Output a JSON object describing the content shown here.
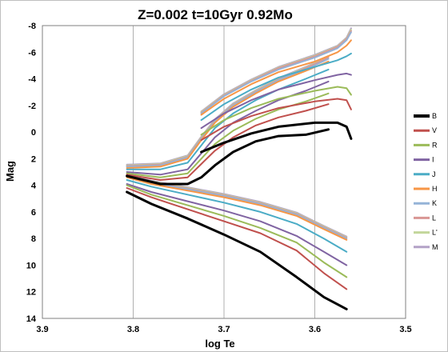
{
  "chart_data": {
    "type": "line",
    "title": "Z=0.002   t=10Gyr   0.92Mo",
    "xlabel": "log Te",
    "ylabel": "Mag",
    "xlim": [
      3.9,
      3.5
    ],
    "ylim": [
      14,
      -8
    ],
    "x_ticks": [
      "3.9",
      "3.8",
      "3.7",
      "3.6",
      "3.5"
    ],
    "y_ticks": [
      "-8",
      "-6",
      "-4",
      "-2",
      "0",
      "2",
      "4",
      "6",
      "8",
      "10",
      "12",
      "14"
    ],
    "x_tick_values": [
      3.9,
      3.8,
      3.7,
      3.6,
      3.5
    ],
    "y_tick_values": [
      -8,
      -6,
      -4,
      -2,
      0,
      2,
      4,
      6,
      8,
      10,
      12,
      14
    ],
    "grid": "vertical",
    "legend_position": "right",
    "series": [
      {
        "name": "B",
        "color": "#000000",
        "width": 3,
        "ms": [
          [
            3.807,
            4.5
          ],
          [
            3.78,
            5.4
          ],
          [
            3.74,
            6.5
          ],
          [
            3.7,
            7.7
          ],
          [
            3.66,
            9.0
          ],
          [
            3.62,
            10.9
          ],
          [
            3.59,
            12.4
          ],
          [
            3.565,
            13.3
          ]
        ],
        "rgb": [
          [
            3.807,
            3.3
          ],
          [
            3.77,
            3.9
          ],
          [
            3.74,
            3.9
          ],
          [
            3.725,
            3.4
          ],
          [
            3.71,
            2.5
          ],
          [
            3.69,
            1.5
          ],
          [
            3.665,
            0.7
          ],
          [
            3.64,
            0.3
          ],
          [
            3.61,
            0.2
          ],
          [
            3.585,
            -0.2
          ]
        ],
        "agb": [
          [
            3.725,
            1.5
          ],
          [
            3.7,
            0.8
          ],
          [
            3.67,
            0.1
          ],
          [
            3.64,
            -0.4
          ],
          [
            3.6,
            -0.7
          ],
          [
            3.575,
            -0.7
          ],
          [
            3.565,
            -0.4
          ],
          [
            3.56,
            0.5
          ]
        ]
      },
      {
        "name": "V",
        "color": "#c0504d",
        "width": 2,
        "ms": [
          [
            3.807,
            4.2
          ],
          [
            3.78,
            4.9
          ],
          [
            3.74,
            5.8
          ],
          [
            3.7,
            6.7
          ],
          [
            3.66,
            7.6
          ],
          [
            3.62,
            8.9
          ],
          [
            3.59,
            10.6
          ],
          [
            3.565,
            11.8
          ]
        ],
        "rgb": [
          [
            3.807,
            3.2
          ],
          [
            3.77,
            3.6
          ],
          [
            3.74,
            3.4
          ],
          [
            3.725,
            2.4
          ],
          [
            3.71,
            1.4
          ],
          [
            3.69,
            0.4
          ],
          [
            3.665,
            -0.5
          ],
          [
            3.64,
            -1.1
          ],
          [
            3.61,
            -1.6
          ],
          [
            3.585,
            -2.1
          ]
        ],
        "agb": [
          [
            3.725,
            0.6
          ],
          [
            3.7,
            -0.4
          ],
          [
            3.67,
            -1.2
          ],
          [
            3.64,
            -1.8
          ],
          [
            3.6,
            -2.3
          ],
          [
            3.575,
            -2.5
          ],
          [
            3.565,
            -2.4
          ],
          [
            3.56,
            -1.7
          ]
        ]
      },
      {
        "name": "R",
        "color": "#9bbb59",
        "width": 2,
        "ms": [
          [
            3.807,
            4.0
          ],
          [
            3.78,
            4.7
          ],
          [
            3.74,
            5.5
          ],
          [
            3.7,
            6.3
          ],
          [
            3.66,
            7.2
          ],
          [
            3.62,
            8.3
          ],
          [
            3.59,
            9.8
          ],
          [
            3.565,
            10.9
          ]
        ],
        "rgb": [
          [
            3.807,
            3.1
          ],
          [
            3.77,
            3.4
          ],
          [
            3.74,
            3.1
          ],
          [
            3.725,
            2.0
          ],
          [
            3.71,
            0.9
          ],
          [
            3.69,
            -0.1
          ],
          [
            3.665,
            -1.0
          ],
          [
            3.64,
            -1.7
          ],
          [
            3.61,
            -2.3
          ],
          [
            3.585,
            -2.9
          ]
        ],
        "agb": [
          [
            3.725,
            0.2
          ],
          [
            3.7,
            -0.9
          ],
          [
            3.67,
            -1.8
          ],
          [
            3.64,
            -2.5
          ],
          [
            3.6,
            -3.1
          ],
          [
            3.575,
            -3.4
          ],
          [
            3.565,
            -3.3
          ],
          [
            3.56,
            -2.8
          ]
        ]
      },
      {
        "name": "I",
        "color": "#8064a2",
        "width": 2,
        "ms": [
          [
            3.807,
            3.9
          ],
          [
            3.78,
            4.5
          ],
          [
            3.74,
            5.2
          ],
          [
            3.7,
            5.9
          ],
          [
            3.66,
            6.7
          ],
          [
            3.62,
            7.8
          ],
          [
            3.59,
            9.0
          ],
          [
            3.565,
            10.0
          ]
        ],
        "rgb": [
          [
            3.807,
            3.0
          ],
          [
            3.77,
            3.2
          ],
          [
            3.74,
            2.8
          ],
          [
            3.725,
            1.6
          ],
          [
            3.71,
            0.4
          ],
          [
            3.69,
            -0.7
          ],
          [
            3.665,
            -1.6
          ],
          [
            3.64,
            -2.4
          ],
          [
            3.61,
            -3.1
          ],
          [
            3.585,
            -3.8
          ]
        ],
        "agb": [
          [
            3.725,
            -0.3
          ],
          [
            3.7,
            -1.4
          ],
          [
            3.67,
            -2.4
          ],
          [
            3.64,
            -3.2
          ],
          [
            3.6,
            -3.9
          ],
          [
            3.575,
            -4.3
          ],
          [
            3.565,
            -4.4
          ],
          [
            3.56,
            -4.3
          ]
        ]
      },
      {
        "name": "J",
        "color": "#4bacc6",
        "width": 2,
        "ms": [
          [
            3.807,
            3.6
          ],
          [
            3.78,
            4.1
          ],
          [
            3.74,
            4.7
          ],
          [
            3.7,
            5.3
          ],
          [
            3.66,
            6.0
          ],
          [
            3.62,
            6.9
          ],
          [
            3.59,
            8.0
          ],
          [
            3.565,
            9.0
          ]
        ],
        "rgb": [
          [
            3.807,
            2.8
          ],
          [
            3.77,
            2.8
          ],
          [
            3.74,
            2.3
          ],
          [
            3.725,
            1.0
          ],
          [
            3.71,
            -0.3
          ],
          [
            3.69,
            -1.4
          ],
          [
            3.665,
            -2.4
          ],
          [
            3.64,
            -3.2
          ],
          [
            3.61,
            -4.0
          ],
          [
            3.585,
            -4.7
          ]
        ],
        "agb": [
          [
            3.725,
            -0.9
          ],
          [
            3.7,
            -2.1
          ],
          [
            3.67,
            -3.2
          ],
          [
            3.64,
            -4.1
          ],
          [
            3.6,
            -4.9
          ],
          [
            3.575,
            -5.4
          ],
          [
            3.565,
            -5.7
          ],
          [
            3.56,
            -5.9
          ]
        ]
      },
      {
        "name": "H",
        "color": "#f79646",
        "width": 2,
        "ms": [
          [
            3.807,
            3.4
          ],
          [
            3.78,
            3.9
          ],
          [
            3.74,
            4.4
          ],
          [
            3.7,
            4.9
          ],
          [
            3.66,
            5.5
          ],
          [
            3.62,
            6.3
          ],
          [
            3.59,
            7.3
          ],
          [
            3.565,
            8.1
          ]
        ],
        "rgb": [
          [
            3.807,
            2.7
          ],
          [
            3.77,
            2.6
          ],
          [
            3.74,
            2.0
          ],
          [
            3.725,
            0.6
          ],
          [
            3.71,
            -0.7
          ],
          [
            3.69,
            -1.9
          ],
          [
            3.665,
            -2.9
          ],
          [
            3.64,
            -3.8
          ],
          [
            3.61,
            -4.6
          ],
          [
            3.585,
            -5.3
          ]
        ],
        "agb": [
          [
            3.725,
            -1.3
          ],
          [
            3.7,
            -2.5
          ],
          [
            3.67,
            -3.6
          ],
          [
            3.64,
            -4.5
          ],
          [
            3.6,
            -5.3
          ],
          [
            3.575,
            -6.0
          ],
          [
            3.565,
            -6.5
          ],
          [
            3.56,
            -6.9
          ]
        ]
      },
      {
        "name": "K",
        "color": "#95b3d7",
        "width": 2,
        "ms": [
          [
            3.807,
            3.3
          ],
          [
            3.78,
            3.8
          ],
          [
            3.74,
            4.3
          ],
          [
            3.7,
            4.8
          ],
          [
            3.66,
            5.4
          ],
          [
            3.62,
            6.2
          ],
          [
            3.59,
            7.2
          ],
          [
            3.565,
            8.0
          ]
        ],
        "rgb": [
          [
            3.807,
            2.6
          ],
          [
            3.77,
            2.5
          ],
          [
            3.74,
            1.9
          ],
          [
            3.725,
            0.5
          ],
          [
            3.71,
            -0.8
          ],
          [
            3.69,
            -2.0
          ],
          [
            3.665,
            -3.0
          ],
          [
            3.64,
            -3.9
          ],
          [
            3.61,
            -4.7
          ],
          [
            3.585,
            -5.5
          ]
        ],
        "agb": [
          [
            3.725,
            -1.4
          ],
          [
            3.7,
            -2.7
          ],
          [
            3.67,
            -3.8
          ],
          [
            3.64,
            -4.7
          ],
          [
            3.6,
            -5.6
          ],
          [
            3.575,
            -6.3
          ],
          [
            3.565,
            -6.9
          ],
          [
            3.56,
            -7.5
          ]
        ]
      },
      {
        "name": "L",
        "color": "#d99694",
        "width": 2,
        "ms": [
          [
            3.807,
            3.3
          ],
          [
            3.78,
            3.75
          ],
          [
            3.74,
            4.25
          ],
          [
            3.7,
            4.75
          ],
          [
            3.66,
            5.35
          ],
          [
            3.62,
            6.15
          ],
          [
            3.59,
            7.15
          ],
          [
            3.565,
            7.95
          ]
        ],
        "rgb": [
          [
            3.807,
            2.55
          ],
          [
            3.77,
            2.45
          ],
          [
            3.74,
            1.85
          ],
          [
            3.725,
            0.45
          ],
          [
            3.71,
            -0.85
          ],
          [
            3.69,
            -2.05
          ],
          [
            3.665,
            -3.05
          ],
          [
            3.64,
            -3.95
          ],
          [
            3.61,
            -4.8
          ],
          [
            3.585,
            -5.6
          ]
        ],
        "agb": [
          [
            3.725,
            -1.45
          ],
          [
            3.7,
            -2.75
          ],
          [
            3.67,
            -3.85
          ],
          [
            3.64,
            -4.8
          ],
          [
            3.6,
            -5.7
          ],
          [
            3.575,
            -6.4
          ],
          [
            3.565,
            -7.0
          ],
          [
            3.56,
            -7.6
          ]
        ]
      },
      {
        "name": "L'",
        "color": "#c3d69b",
        "width": 2,
        "ms": [
          [
            3.807,
            3.25
          ],
          [
            3.78,
            3.7
          ],
          [
            3.74,
            4.2
          ],
          [
            3.7,
            4.7
          ],
          [
            3.66,
            5.3
          ],
          [
            3.62,
            6.1
          ],
          [
            3.59,
            7.1
          ],
          [
            3.565,
            7.9
          ]
        ],
        "rgb": [
          [
            3.807,
            2.5
          ],
          [
            3.77,
            2.4
          ],
          [
            3.74,
            1.8
          ],
          [
            3.725,
            0.4
          ],
          [
            3.71,
            -0.9
          ],
          [
            3.69,
            -2.1
          ],
          [
            3.665,
            -3.1
          ],
          [
            3.64,
            -4.0
          ],
          [
            3.61,
            -4.85
          ],
          [
            3.585,
            -5.65
          ]
        ],
        "agb": [
          [
            3.725,
            -1.5
          ],
          [
            3.7,
            -2.8
          ],
          [
            3.67,
            -3.9
          ],
          [
            3.64,
            -4.85
          ],
          [
            3.6,
            -5.75
          ],
          [
            3.575,
            -6.45
          ],
          [
            3.565,
            -7.05
          ],
          [
            3.56,
            -7.7
          ]
        ]
      },
      {
        "name": "M",
        "color": "#b3a2c7",
        "width": 2,
        "ms": [
          [
            3.807,
            3.2
          ],
          [
            3.78,
            3.65
          ],
          [
            3.74,
            4.15
          ],
          [
            3.7,
            4.65
          ],
          [
            3.66,
            5.25
          ],
          [
            3.62,
            6.05
          ],
          [
            3.59,
            7.05
          ],
          [
            3.565,
            7.85
          ]
        ],
        "rgb": [
          [
            3.807,
            2.45
          ],
          [
            3.77,
            2.35
          ],
          [
            3.74,
            1.75
          ],
          [
            3.725,
            0.35
          ],
          [
            3.71,
            -0.95
          ],
          [
            3.69,
            -2.15
          ],
          [
            3.665,
            -3.15
          ],
          [
            3.64,
            -4.05
          ],
          [
            3.61,
            -4.9
          ],
          [
            3.585,
            -5.7
          ]
        ],
        "agb": [
          [
            3.725,
            -1.55
          ],
          [
            3.7,
            -2.85
          ],
          [
            3.67,
            -3.95
          ],
          [
            3.64,
            -4.9
          ],
          [
            3.6,
            -5.8
          ],
          [
            3.575,
            -6.5
          ],
          [
            3.565,
            -7.1
          ],
          [
            3.56,
            -7.8
          ]
        ]
      }
    ]
  }
}
